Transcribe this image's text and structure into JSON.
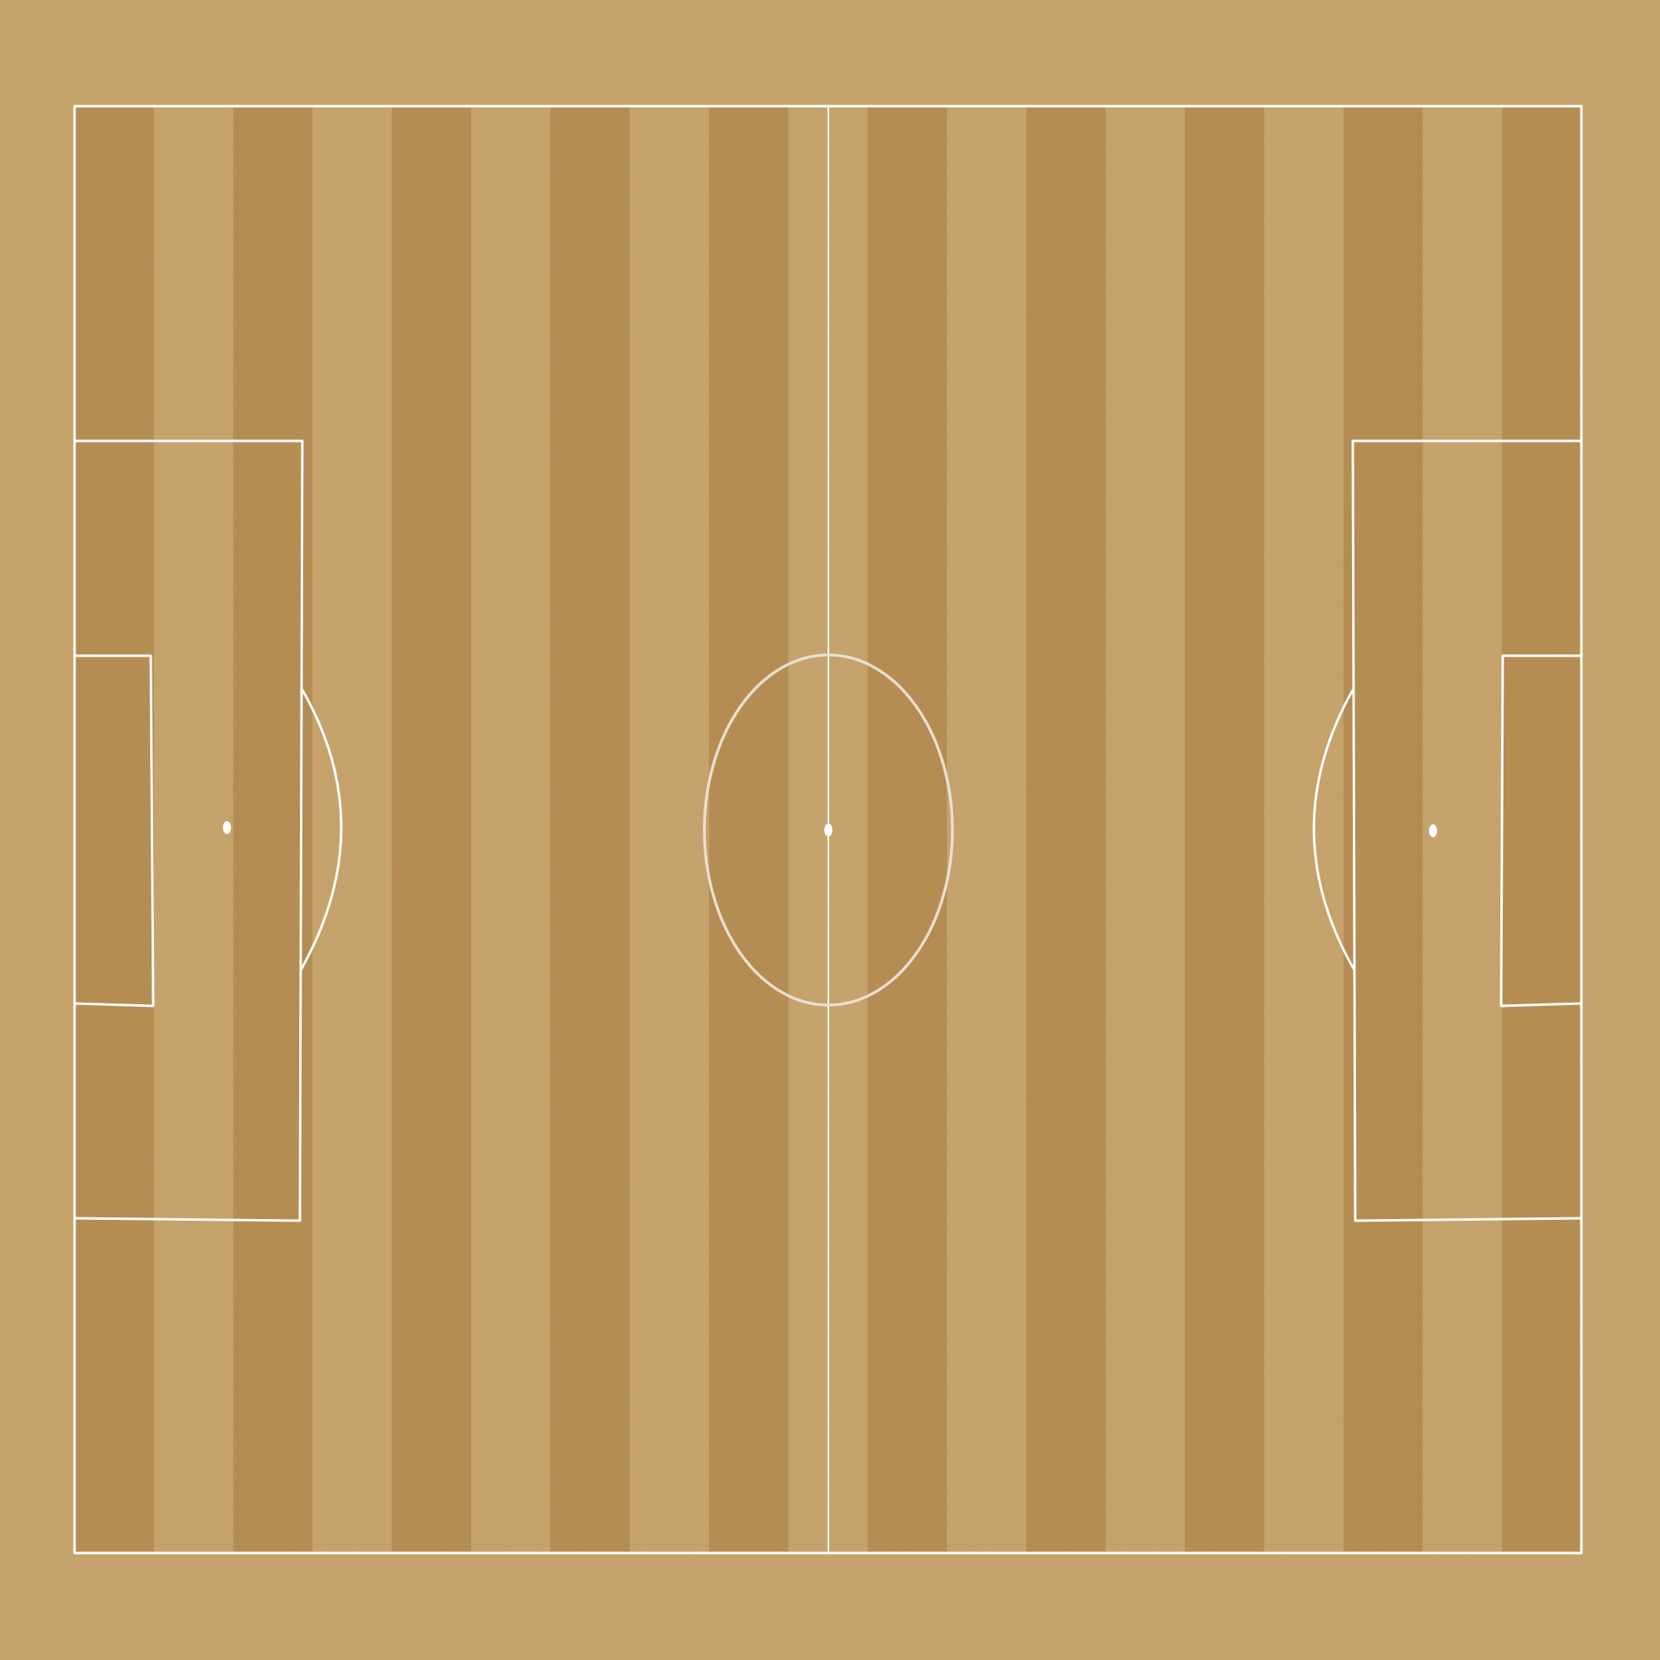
{
  "scene": {
    "type": "football-pitch-top-view",
    "surface": "sand",
    "colors": {
      "surround": "#c8a46a",
      "stripe_light": "#c9a46a",
      "stripe_dark": "#b58a4c",
      "line": "#ffffff",
      "center_circle_line": "#e9dfcf"
    }
  },
  "pitch": {
    "stripe_count": 19,
    "first_stripe": "dark",
    "markings": [
      "touchlines",
      "halfway-line",
      "center-circle",
      "center-spot",
      "left-penalty-area",
      "left-goal-area",
      "left-penalty-spot",
      "left-penalty-arc",
      "right-penalty-area",
      "right-goal-area",
      "right-penalty-spot",
      "right-penalty-arc"
    ]
  }
}
